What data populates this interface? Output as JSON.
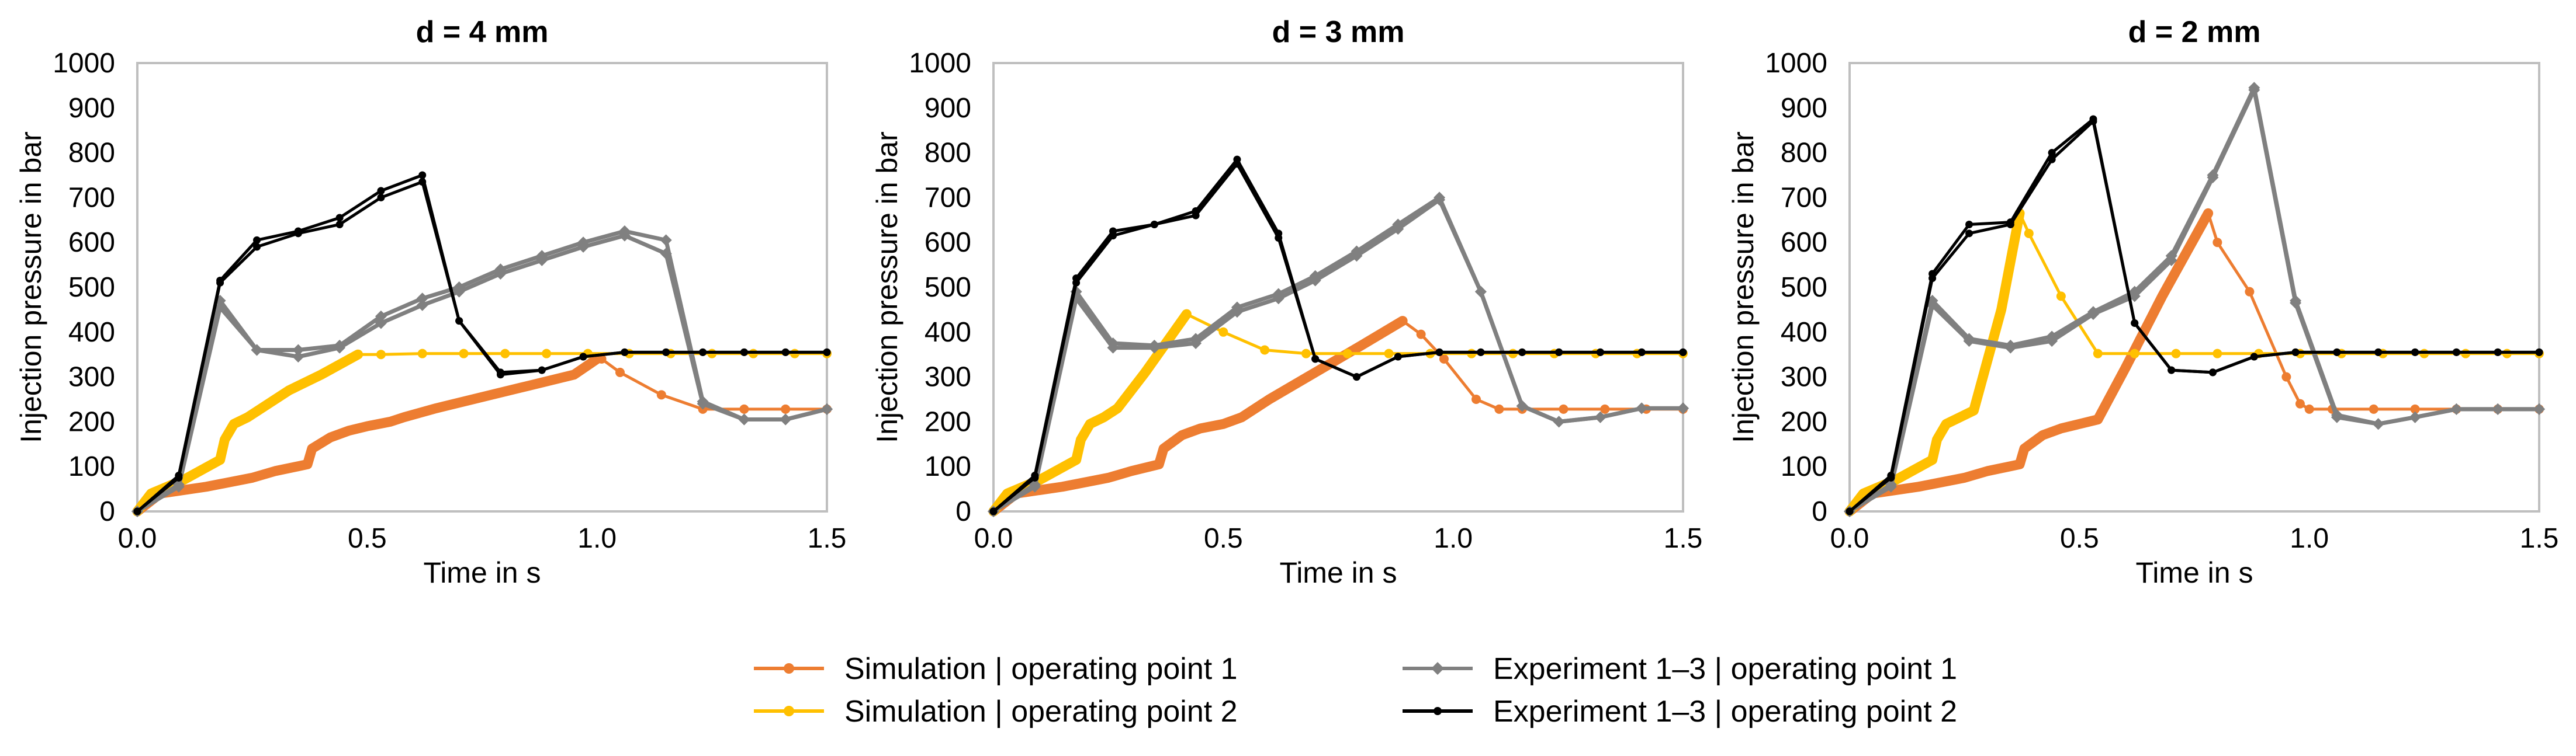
{
  "legend": [
    {
      "label": "Simulation | operating point 1",
      "color": "#ED7D31"
    },
    {
      "label": "Simulation | operating point 2",
      "color": "#FFC000"
    },
    {
      "label": "Experiment 1–3 | operating point 1",
      "color": "#808080"
    },
    {
      "label": "Experiment 1–3 | operating point 2",
      "color": "#000000"
    }
  ],
  "chart_data": [
    {
      "type": "line",
      "title": "d = 4 mm",
      "xlabel": "Time in s",
      "ylabel": "Injection pressure in bar",
      "xlim": [
        0,
        1.5
      ],
      "ylim": [
        0,
        1000
      ],
      "xticks": [
        "0.0",
        "0.5",
        "1.0",
        "1.5"
      ],
      "yticks": [
        "0",
        "100",
        "200",
        "300",
        "400",
        "500",
        "600",
        "700",
        "800",
        "900",
        "1000"
      ],
      "grid": false,
      "series": [
        {
          "name": "Simulation | operating point 1",
          "color": "#ED7D31",
          "thick_until": 1.0,
          "x": [
            0,
            0.05,
            0.15,
            0.25,
            0.3,
            0.37,
            0.38,
            0.42,
            0.46,
            0.5,
            0.55,
            0.58,
            0.65,
            0.75,
            0.85,
            0.95,
            1.0,
            1.01,
            1.05,
            1.14,
            1.23,
            1.32,
            1.41,
            1.5
          ],
          "y": [
            0,
            40,
            55,
            75,
            90,
            105,
            140,
            165,
            180,
            190,
            200,
            210,
            230,
            255,
            280,
            305,
            340,
            340,
            310,
            260,
            228,
            228,
            228,
            228
          ]
        },
        {
          "name": "Simulation | operating point 2",
          "color": "#FFC000",
          "thick_until": 0.48,
          "x": [
            0,
            0.03,
            0.1,
            0.18,
            0.19,
            0.21,
            0.24,
            0.27,
            0.33,
            0.4,
            0.48,
            0.53,
            0.62,
            0.71,
            0.8,
            0.89,
            0.98,
            1.07,
            1.16,
            1.25,
            1.34,
            1.43,
            1.5
          ],
          "y": [
            0,
            40,
            70,
            115,
            160,
            195,
            210,
            230,
            270,
            305,
            350,
            350,
            352,
            352,
            352,
            352,
            352,
            352,
            352,
            352,
            352,
            352,
            352
          ]
        },
        {
          "name": "Experiment 1–3 | operating point 1 (a)",
          "color": "#808080",
          "x": [
            0,
            0.09,
            0.18,
            0.26,
            0.35,
            0.44,
            0.53,
            0.62,
            0.7,
            0.79,
            0.88,
            0.97,
            1.06,
            1.15,
            1.23,
            1.32,
            1.41,
            1.5
          ],
          "y": [
            0,
            60,
            470,
            360,
            360,
            370,
            435,
            475,
            500,
            540,
            570,
            600,
            625,
            605,
            245,
            205,
            205,
            228
          ]
        },
        {
          "name": "Experiment 1–3 | operating point 1 (b)",
          "color": "#808080",
          "x": [
            0,
            0.09,
            0.18,
            0.26,
            0.35,
            0.44,
            0.53,
            0.62,
            0.7,
            0.79,
            0.88,
            0.97,
            1.06,
            1.15,
            1.23,
            1.32,
            1.41,
            1.5
          ],
          "y": [
            0,
            55,
            455,
            360,
            345,
            365,
            420,
            460,
            490,
            530,
            560,
            590,
            615,
            575,
            240,
            205,
            205,
            228
          ]
        },
        {
          "name": "Experiment 1–3 | operating point 2 (a)",
          "color": "#000000",
          "x": [
            0,
            0.09,
            0.18,
            0.26,
            0.35,
            0.44,
            0.53,
            0.62,
            0.7,
            0.79,
            0.88,
            0.97,
            1.06,
            1.15,
            1.23,
            1.32,
            1.41,
            1.5
          ],
          "y": [
            0,
            80,
            515,
            605,
            625,
            655,
            715,
            750,
            425,
            310,
            315,
            345,
            355,
            355,
            355,
            355,
            355,
            355
          ]
        },
        {
          "name": "Experiment 1–3 | operating point 2 (b)",
          "color": "#000000",
          "x": [
            0,
            0.09,
            0.18,
            0.26,
            0.35,
            0.44,
            0.53,
            0.62,
            0.7,
            0.79,
            0.88,
            0.97,
            1.06,
            1.15,
            1.23,
            1.32,
            1.41,
            1.5
          ],
          "y": [
            0,
            75,
            510,
            590,
            620,
            640,
            700,
            735,
            425,
            305,
            315,
            345,
            355,
            355,
            355,
            355,
            355,
            355
          ]
        }
      ]
    },
    {
      "type": "line",
      "title": "d = 3 mm",
      "xlabel": "Time in s",
      "ylabel": "Injection pressure in bar",
      "xlim": [
        0,
        1.5
      ],
      "ylim": [
        0,
        1000
      ],
      "xticks": [
        "0.0",
        "0.5",
        "1.0",
        "1.5"
      ],
      "yticks": [
        "0",
        "100",
        "200",
        "300",
        "400",
        "500",
        "600",
        "700",
        "800",
        "900",
        "1000"
      ],
      "grid": false,
      "series": [
        {
          "name": "Simulation | operating point 1",
          "color": "#ED7D31",
          "thick_until": 0.89,
          "x": [
            0,
            0.05,
            0.15,
            0.25,
            0.3,
            0.36,
            0.37,
            0.41,
            0.45,
            0.5,
            0.54,
            0.6,
            0.7,
            0.8,
            0.89,
            0.93,
            0.98,
            1.05,
            1.1,
            1.15,
            1.24,
            1.33,
            1.42,
            1.5
          ],
          "y": [
            0,
            40,
            55,
            75,
            90,
            105,
            140,
            170,
            185,
            195,
            210,
            250,
            310,
            370,
            425,
            395,
            340,
            250,
            228,
            228,
            228,
            228,
            228,
            228
          ]
        },
        {
          "name": "Simulation | operating point 2",
          "color": "#FFC000",
          "thick_until": 0.42,
          "x": [
            0,
            0.03,
            0.1,
            0.18,
            0.19,
            0.21,
            0.24,
            0.27,
            0.33,
            0.42,
            0.5,
            0.59,
            0.68,
            0.77,
            0.86,
            0.95,
            1.04,
            1.13,
            1.22,
            1.31,
            1.4,
            1.5
          ],
          "y": [
            0,
            40,
            70,
            115,
            160,
            195,
            210,
            230,
            310,
            440,
            400,
            360,
            352,
            352,
            352,
            352,
            352,
            352,
            352,
            352,
            352,
            352
          ]
        },
        {
          "name": "Experiment 1–3 | operating point 1 (a)",
          "color": "#808080",
          "x": [
            0,
            0.09,
            0.18,
            0.26,
            0.35,
            0.44,
            0.53,
            0.62,
            0.7,
            0.79,
            0.88,
            0.97,
            1.06,
            1.15,
            1.23,
            1.32,
            1.41,
            1.5
          ],
          "y": [
            0,
            60,
            490,
            375,
            370,
            385,
            455,
            485,
            525,
            580,
            640,
            700,
            490,
            235,
            200,
            210,
            230,
            230
          ]
        },
        {
          "name": "Experiment 1–3 | operating point 1 (b)",
          "color": "#808080",
          "x": [
            0,
            0.09,
            0.18,
            0.26,
            0.35,
            0.44,
            0.53,
            0.62,
            0.7,
            0.79,
            0.88,
            0.97,
            1.06,
            1.15,
            1.23,
            1.32,
            1.41,
            1.5
          ],
          "y": [
            0,
            55,
            475,
            365,
            365,
            375,
            445,
            475,
            515,
            570,
            630,
            695,
            490,
            235,
            200,
            210,
            230,
            230
          ]
        },
        {
          "name": "Experiment 1–3 | operating point 2 (a)",
          "color": "#000000",
          "x": [
            0,
            0.09,
            0.18,
            0.26,
            0.35,
            0.44,
            0.53,
            0.62,
            0.7,
            0.79,
            0.88,
            0.97,
            1.06,
            1.15,
            1.23,
            1.32,
            1.41,
            1.5
          ],
          "y": [
            0,
            80,
            520,
            625,
            640,
            670,
            785,
            620,
            340,
            300,
            345,
            355,
            355,
            355,
            355,
            355,
            355,
            355
          ]
        },
        {
          "name": "Experiment 1–3 | operating point 2 (b)",
          "color": "#000000",
          "x": [
            0,
            0.09,
            0.18,
            0.26,
            0.35,
            0.44,
            0.53,
            0.62,
            0.7,
            0.79,
            0.88,
            0.97,
            1.06,
            1.15,
            1.23,
            1.32,
            1.41,
            1.5
          ],
          "y": [
            0,
            75,
            510,
            615,
            640,
            660,
            775,
            610,
            340,
            300,
            345,
            355,
            355,
            355,
            355,
            355,
            355,
            355
          ]
        }
      ]
    },
    {
      "type": "line",
      "title": "d = 2 mm",
      "xlabel": "Time in s",
      "ylabel": "Injection pressure in bar",
      "xlim": [
        0,
        1.5
      ],
      "ylim": [
        0,
        1000
      ],
      "xticks": [
        "0.0",
        "0.5",
        "1.0",
        "1.5"
      ],
      "yticks": [
        "0",
        "100",
        "200",
        "300",
        "400",
        "500",
        "600",
        "700",
        "800",
        "900",
        "1000"
      ],
      "grid": false,
      "series": [
        {
          "name": "Simulation | operating point 1",
          "color": "#ED7D31",
          "thick_until": 0.78,
          "x": [
            0,
            0.05,
            0.15,
            0.25,
            0.3,
            0.37,
            0.38,
            0.42,
            0.46,
            0.5,
            0.54,
            0.6,
            0.68,
            0.78,
            0.8,
            0.87,
            0.95,
            0.98,
            1.0,
            1.05,
            1.14,
            1.23,
            1.32,
            1.41,
            1.5
          ],
          "y": [
            0,
            40,
            55,
            75,
            90,
            105,
            140,
            170,
            185,
            195,
            205,
            320,
            480,
            665,
            600,
            490,
            300,
            240,
            228,
            228,
            228,
            228,
            228,
            228,
            228
          ]
        },
        {
          "name": "Simulation | operating point 2",
          "color": "#FFC000",
          "thick_until": 0.37,
          "x": [
            0,
            0.03,
            0.1,
            0.18,
            0.19,
            0.21,
            0.24,
            0.27,
            0.33,
            0.37,
            0.39,
            0.46,
            0.54,
            0.62,
            0.71,
            0.8,
            0.89,
            0.98,
            1.07,
            1.16,
            1.25,
            1.34,
            1.43,
            1.5
          ],
          "y": [
            0,
            40,
            70,
            115,
            160,
            195,
            210,
            225,
            450,
            665,
            620,
            480,
            352,
            352,
            352,
            352,
            352,
            352,
            352,
            352,
            352,
            352,
            352,
            352
          ]
        },
        {
          "name": "Experiment 1–3 | operating point 1 (a)",
          "color": "#808080",
          "x": [
            0,
            0.09,
            0.18,
            0.26,
            0.35,
            0.44,
            0.53,
            0.62,
            0.7,
            0.79,
            0.88,
            0.97,
            1.06,
            1.15,
            1.23,
            1.32,
            1.41,
            1.5
          ],
          "y": [
            0,
            60,
            470,
            385,
            370,
            390,
            445,
            490,
            570,
            750,
            945,
            470,
            215,
            195,
            210,
            228,
            228,
            228
          ]
        },
        {
          "name": "Experiment 1–3 | operating point 1 (b)",
          "color": "#808080",
          "x": [
            0,
            0.09,
            0.18,
            0.26,
            0.35,
            0.44,
            0.53,
            0.62,
            0.7,
            0.79,
            0.88,
            0.97,
            1.06,
            1.15,
            1.23,
            1.32,
            1.41,
            1.5
          ],
          "y": [
            0,
            55,
            460,
            380,
            365,
            380,
            440,
            480,
            560,
            745,
            940,
            465,
            210,
            195,
            210,
            228,
            228,
            228
          ]
        },
        {
          "name": "Experiment 1–3 | operating point 2 (a)",
          "color": "#000000",
          "x": [
            0,
            0.09,
            0.18,
            0.26,
            0.35,
            0.44,
            0.53,
            0.62,
            0.7,
            0.79,
            0.88,
            0.97,
            1.06,
            1.15,
            1.23,
            1.32,
            1.41,
            1.5
          ],
          "y": [
            0,
            80,
            530,
            640,
            645,
            800,
            875,
            420,
            315,
            310,
            345,
            355,
            355,
            355,
            355,
            355,
            355,
            355
          ]
        },
        {
          "name": "Experiment 1–3 | operating point 2 (b)",
          "color": "#000000",
          "x": [
            0,
            0.09,
            0.18,
            0.26,
            0.35,
            0.44,
            0.53,
            0.62,
            0.7,
            0.79,
            0.88,
            0.97,
            1.06,
            1.15,
            1.23,
            1.32,
            1.41,
            1.5
          ],
          "y": [
            0,
            75,
            520,
            620,
            640,
            785,
            870,
            420,
            315,
            310,
            345,
            355,
            355,
            355,
            355,
            355,
            355,
            355
          ]
        }
      ]
    }
  ]
}
